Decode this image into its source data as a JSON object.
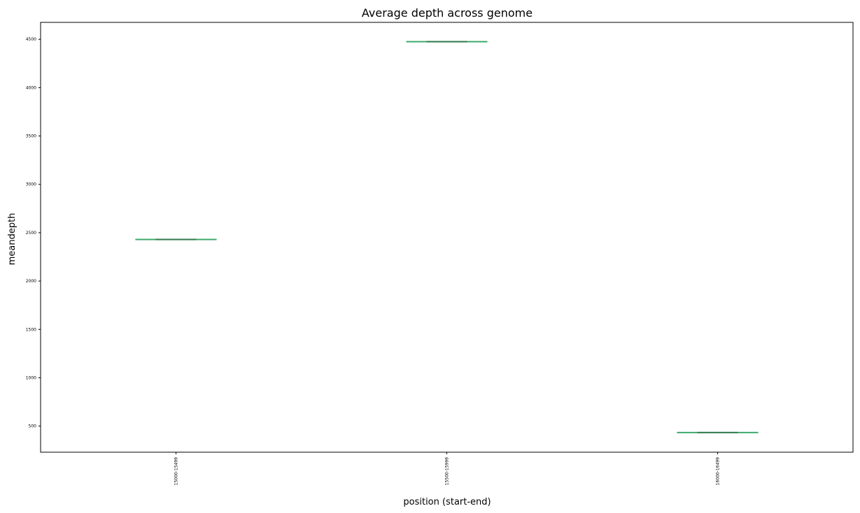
{
  "chart_data": {
    "type": "boxplot",
    "title": "Average depth across genome",
    "xlabel": "position (start-end)",
    "ylabel": "meandepth",
    "categories": [
      "15000-15499",
      "15500-15999",
      "16000-16499"
    ],
    "values": [
      2430,
      4475,
      433
    ],
    "ylim": [
      230,
      4675
    ],
    "yticks": [
      500,
      1000,
      1500,
      2000,
      2500,
      3000,
      3500,
      4000,
      4500
    ],
    "grid": false,
    "legend": "none"
  },
  "colors": {
    "box_line": "#3daa6a",
    "median_line": "#3d7d55",
    "axis": "#000000"
  }
}
